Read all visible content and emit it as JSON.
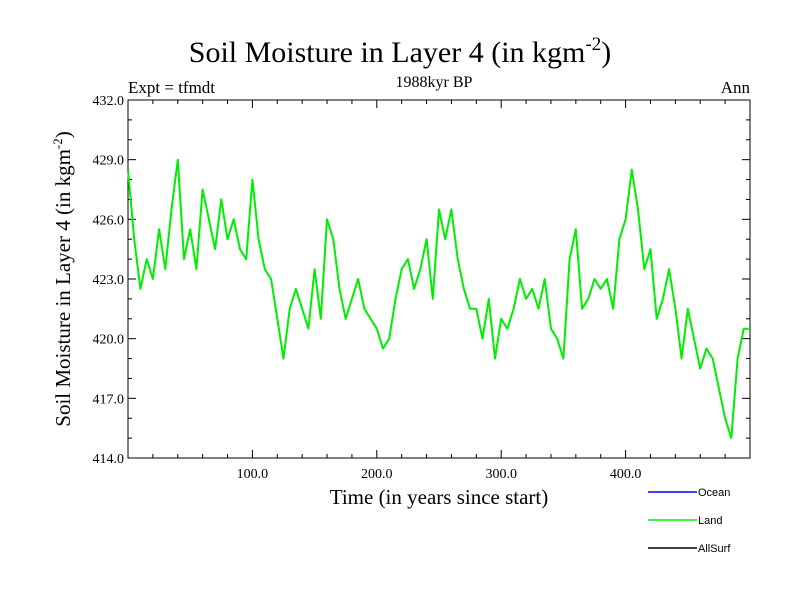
{
  "chart_data": {
    "type": "line",
    "title": "Soil Moisture in Layer 4 (in kgm",
    "title_sup": "-2",
    "title_end": ")",
    "subtitle": "1988kyr BP",
    "left_label": "Expt = tfmdt",
    "right_label": "Ann",
    "xlabel": "Time (in years since start)",
    "ylabel": "Soil Moisture in Layer 4 (in kgm",
    "ylabel_sup": "-2",
    "ylabel_end": ")",
    "xlim": [
      0,
      500
    ],
    "ylim": [
      414.0,
      432.0
    ],
    "xticks": [
      100,
      200,
      300,
      400
    ],
    "xtick_labels": [
      "100.0",
      "200.0",
      "300.0",
      "400.0"
    ],
    "yticks": [
      414,
      417,
      420,
      423,
      426,
      429,
      432
    ],
    "ytick_labels": [
      "414.0",
      "417.0",
      "420.0",
      "423.0",
      "426.0",
      "429.0",
      "432.0"
    ],
    "legend": [
      {
        "name": "Ocean",
        "color": "#0000ff"
      },
      {
        "name": "Land",
        "color": "#00ee00"
      },
      {
        "name": "AllSurf",
        "color": "#000000"
      }
    ],
    "series": [
      {
        "name": "Land",
        "color": "#00ee00",
        "x": [
          0,
          5,
          10,
          15,
          20,
          25,
          30,
          35,
          40,
          45,
          50,
          55,
          60,
          65,
          70,
          75,
          80,
          85,
          90,
          95,
          100,
          105,
          110,
          115,
          120,
          125,
          130,
          135,
          140,
          145,
          150,
          155,
          160,
          165,
          170,
          175,
          180,
          185,
          190,
          195,
          200,
          205,
          210,
          215,
          220,
          225,
          230,
          235,
          240,
          245,
          250,
          255,
          260,
          265,
          270,
          275,
          280,
          285,
          290,
          295,
          300,
          305,
          310,
          315,
          320,
          325,
          330,
          335,
          340,
          345,
          350,
          355,
          360,
          365,
          370,
          375,
          380,
          385,
          390,
          395,
          400,
          405,
          410,
          415,
          420,
          425,
          430,
          435,
          440,
          445,
          450,
          455,
          460,
          465,
          470,
          475,
          480,
          485,
          490,
          495,
          500
        ],
        "values": [
          428.5,
          425.0,
          422.5,
          424.0,
          423.0,
          425.5,
          423.5,
          426.5,
          429.0,
          424.0,
          425.5,
          423.5,
          427.5,
          426.0,
          424.5,
          427.0,
          425.0,
          426.0,
          424.5,
          424.0,
          428.0,
          425.0,
          423.5,
          423.0,
          421.0,
          419.0,
          421.5,
          422.5,
          421.5,
          420.5,
          423.5,
          421.0,
          426.0,
          425.0,
          422.5,
          421.0,
          422.0,
          423.0,
          421.5,
          421.0,
          420.5,
          419.5,
          420.0,
          422.0,
          423.5,
          424.0,
          422.5,
          423.5,
          425.0,
          422.0,
          426.5,
          425.0,
          426.5,
          424.0,
          422.5,
          421.5,
          421.5,
          420.0,
          422.0,
          419.0,
          421.0,
          420.5,
          421.5,
          423.0,
          422.0,
          422.5,
          421.5,
          423.0,
          420.5,
          420.0,
          419.0,
          424.0,
          425.5,
          421.5,
          422.0,
          423.0,
          422.5,
          423.0,
          421.5,
          425.0,
          426.0,
          428.5,
          426.5,
          423.5,
          424.5,
          421.0,
          422.0,
          423.5,
          421.5,
          419.0,
          421.5,
          420.0,
          418.5,
          419.5,
          419.0,
          417.5,
          416.0,
          415.0,
          419.0,
          420.5,
          420.5
        ]
      }
    ]
  }
}
